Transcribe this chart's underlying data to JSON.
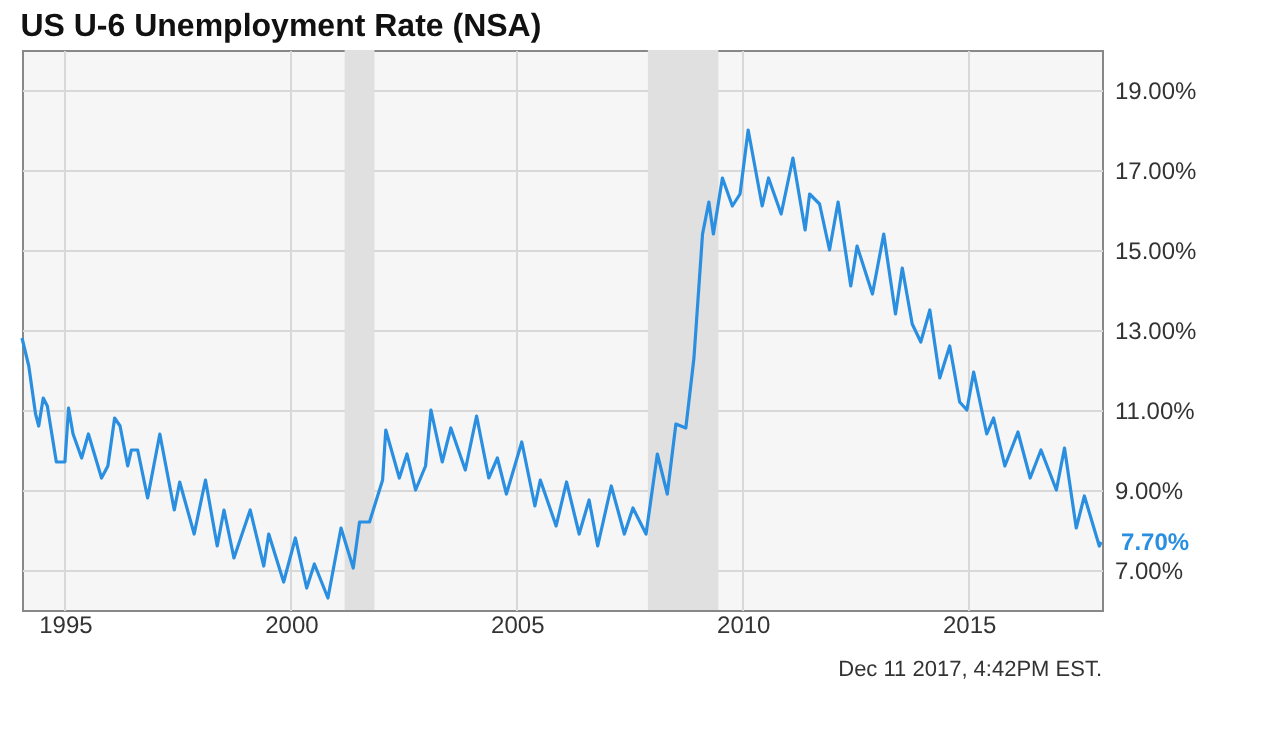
{
  "chart_data": {
    "type": "line",
    "title": "US U-6 Unemployment Rate (NSA)",
    "x": [
      1994.05,
      1994.2,
      1994.35,
      1994.42,
      1994.52,
      1994.61,
      1994.81,
      1995.0,
      1995.08,
      1995.18,
      1995.37,
      1995.52,
      1995.81,
      1995.95,
      1996.1,
      1996.22,
      1996.39,
      1996.47,
      1996.61,
      1996.83,
      1997.1,
      1997.42,
      1997.54,
      1997.86,
      1998.11,
      1998.37,
      1998.52,
      1998.74,
      1999.1,
      1999.4,
      1999.51,
      1999.84,
      2000.1,
      2000.35,
      2000.52,
      2000.82,
      2001.11,
      2001.38,
      2001.52,
      2001.74,
      2002.03,
      2002.1,
      2002.4,
      2002.57,
      2002.76,
      2002.98,
      2003.1,
      2003.35,
      2003.54,
      2003.86,
      2004.11,
      2004.38,
      2004.57,
      2004.77,
      2005.11,
      2005.4,
      2005.52,
      2005.87,
      2006.1,
      2006.38,
      2006.6,
      2006.79,
      2007.09,
      2007.38,
      2007.57,
      2007.86,
      2008.11,
      2008.33,
      2008.52,
      2008.74,
      2008.92,
      2009.11,
      2009.25,
      2009.35,
      2009.55,
      2009.77,
      2009.94,
      2010.12,
      2010.43,
      2010.57,
      2010.85,
      2011.11,
      2011.38,
      2011.48,
      2011.7,
      2011.92,
      2012.11,
      2012.39,
      2012.53,
      2012.87,
      2013.12,
      2013.38,
      2013.53,
      2013.75,
      2013.94,
      2014.14,
      2014.36,
      2014.58,
      2014.8,
      2014.96,
      2015.11,
      2015.4,
      2015.55,
      2015.8,
      2016.09,
      2016.36,
      2016.6,
      2016.94,
      2017.12,
      2017.38,
      2017.56,
      2017.89,
      2017.93
    ],
    "series": [
      {
        "color": "#2a8fe0",
        "values": [
          12.8,
          12.1,
          10.9,
          10.6,
          11.3,
          11.1,
          9.7,
          9.7,
          11.05,
          10.4,
          9.8,
          10.4,
          9.3,
          9.6,
          10.8,
          10.6,
          9.6,
          10.0,
          10.0,
          8.8,
          10.4,
          8.5,
          9.2,
          7.9,
          9.25,
          7.6,
          8.5,
          7.3,
          8.5,
          7.1,
          7.9,
          6.7,
          7.8,
          6.55,
          7.15,
          6.3,
          8.05,
          7.05,
          8.2,
          8.2,
          9.25,
          10.5,
          9.3,
          9.9,
          9.0,
          9.6,
          11.0,
          9.7,
          10.55,
          9.5,
          10.85,
          9.3,
          9.8,
          8.9,
          10.2,
          8.6,
          9.25,
          8.1,
          9.2,
          7.9,
          8.75,
          7.6,
          9.1,
          7.9,
          8.55,
          7.9,
          9.9,
          8.9,
          10.65,
          10.55,
          12.3,
          15.4,
          16.2,
          15.4,
          16.8,
          16.1,
          16.4,
          18.0,
          16.1,
          16.8,
          15.9,
          17.3,
          15.5,
          16.4,
          16.15,
          15.0,
          16.2,
          14.1,
          15.1,
          13.9,
          15.4,
          13.4,
          14.55,
          13.15,
          12.7,
          13.5,
          11.8,
          12.6,
          11.2,
          11.0,
          11.95,
          10.4,
          10.8,
          9.6,
          10.45,
          9.3,
          10.0,
          9.0,
          10.05,
          8.05,
          8.85,
          7.6,
          7.7
        ]
      }
    ],
    "xlim": [
      1994.05,
      2017.95
    ],
    "xticks": [
      1995,
      2000,
      2005,
      2010,
      2015
    ],
    "ylim": [
      6,
      20
    ],
    "yticks": [
      {
        "value": 7,
        "label": "7.00%"
      },
      {
        "value": 9,
        "label": "9.00%"
      },
      {
        "value": 11,
        "label": "11.00%"
      },
      {
        "value": 13,
        "label": "13.00%"
      },
      {
        "value": 15,
        "label": "15.00%"
      },
      {
        "value": 17,
        "label": "17.00%"
      },
      {
        "value": 19,
        "label": "19.00%"
      }
    ],
    "grid": true,
    "marker": "none",
    "line_style": "solid",
    "bands": [
      {
        "axis": "x",
        "from": 2001.19,
        "to": 2001.85,
        "color": "#e0e0e0"
      },
      {
        "axis": "x",
        "from": 2007.9,
        "to": 2009.46,
        "color": "#e0e0e0"
      }
    ],
    "annotations": [
      {
        "text": "7.70%",
        "x": 2017.93,
        "y": 7.7
      },
      "Dec 11 2017, 4:42PM EST."
    ]
  }
}
